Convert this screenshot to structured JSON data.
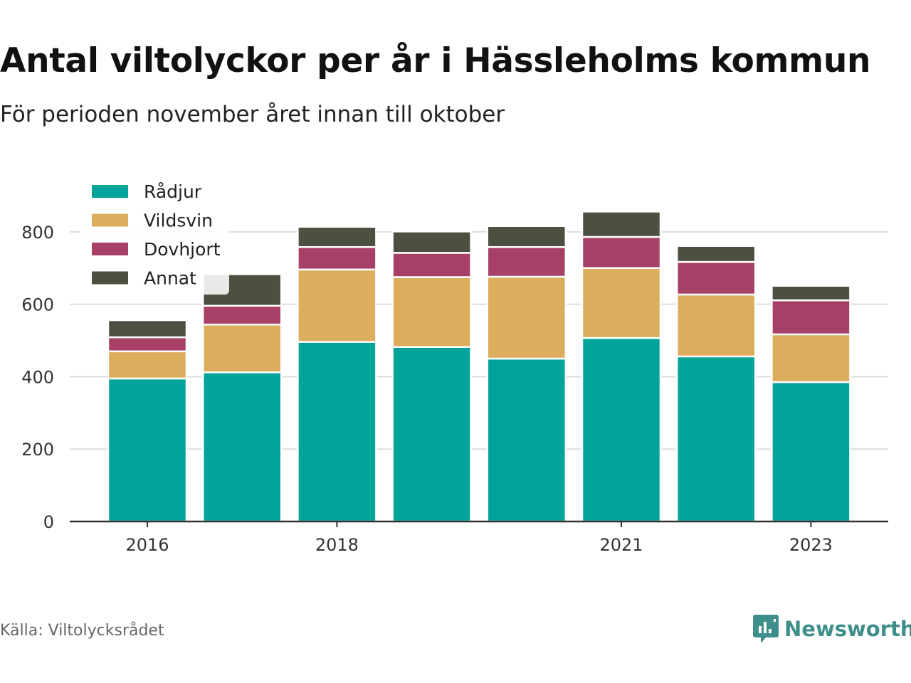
{
  "title": "Antal viltolyckor per år i Hässleholms kommun",
  "subtitle": "För perioden november året innan till oktober",
  "source": "Källa: Viltolycksrådet",
  "brand": {
    "name": "Newsworthy",
    "icon": "newsworthy-logo-icon",
    "color": "#3e8f8c"
  },
  "chart_data": {
    "type": "bar",
    "stacked": true,
    "categories": [
      "2016",
      "2017",
      "2018",
      "2019",
      "2020",
      "2021",
      "2022",
      "2023"
    ],
    "x_tick_labels": [
      "2016",
      "",
      "2018",
      "",
      "",
      "2021",
      "",
      "2023"
    ],
    "series": [
      {
        "name": "Rådjur",
        "color": "#02a39a",
        "values": [
          395,
          412,
          496,
          482,
          450,
          507,
          456,
          385
        ]
      },
      {
        "name": "Vildsvin",
        "color": "#dbad5c",
        "values": [
          75,
          132,
          200,
          193,
          226,
          193,
          171,
          132
        ]
      },
      {
        "name": "Dovhjort",
        "color": "#a64066",
        "values": [
          39,
          52,
          62,
          67,
          82,
          86,
          90,
          94
        ]
      },
      {
        "name": "Annat",
        "color": "#4d4f41",
        "values": [
          47,
          87,
          56,
          59,
          58,
          70,
          44,
          40
        ]
      }
    ],
    "ylim": [
      0,
      900
    ],
    "y_ticks": [
      0,
      200,
      400,
      600,
      800
    ],
    "xlabel": "",
    "ylabel": "",
    "grid": true,
    "legend": "top-left"
  }
}
